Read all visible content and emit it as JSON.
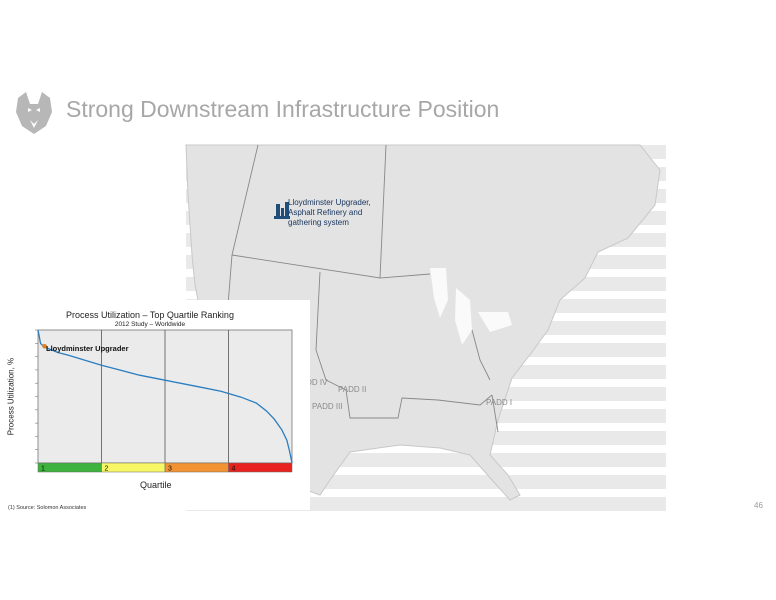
{
  "slide": {
    "title": "Strong Downstream Infrastructure Position",
    "page_number": "46",
    "source_note": "(1) Source: Solomon Associates"
  },
  "map": {
    "main_label": "Lloydminster Upgrader, Asphalt Refinery and gathering system",
    "padd_labels": [
      "PADD IV",
      "PADD II",
      "PADD III",
      "PADD I"
    ]
  },
  "chart_data": {
    "type": "line",
    "title": "Process Utilization – Top Quartile Ranking",
    "subtitle": "2012 Study – Worldwide",
    "xlabel": "Quartile",
    "ylabel": "Process Utilization, %",
    "annotation": "Lloydminster Upgrader",
    "quartile_labels": [
      "1",
      "2",
      "3",
      "4"
    ],
    "quartile_colors": [
      "#3db23d",
      "#f7f765",
      "#f39233",
      "#e8231f"
    ],
    "x": [
      0,
      0.5,
      1,
      2,
      4,
      8,
      12,
      18,
      25,
      32,
      40,
      48,
      56,
      64,
      72,
      80,
      86,
      90,
      93,
      96,
      98,
      99,
      100
    ],
    "y": [
      100,
      95,
      90,
      88,
      86,
      83,
      81,
      77.5,
      73.5,
      70,
      66,
      63,
      60,
      57,
      54,
      49.5,
      45,
      39,
      33,
      25,
      17,
      9,
      0
    ],
    "ylim": [
      0,
      100
    ],
    "xlim": [
      0,
      100
    ],
    "line_color": "#2a7dbf"
  }
}
